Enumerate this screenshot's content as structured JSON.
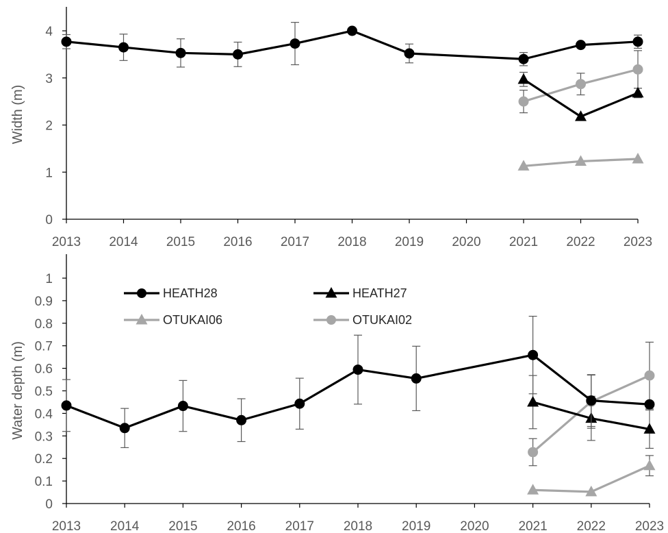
{
  "chart_data": [
    {
      "type": "line",
      "title": "",
      "xlabel": "",
      "ylabel": "Width (m)",
      "ylim": [
        0,
        4
      ],
      "yticks": [
        "0",
        "1",
        "2",
        "3",
        "4"
      ],
      "xlim": [
        2013,
        2023
      ],
      "xticks": [
        "2013",
        "2014",
        "2015",
        "2016",
        "2017",
        "2018",
        "2019",
        "2020",
        "2021",
        "2022",
        "2023"
      ],
      "grid": false,
      "series": [
        {
          "name": "HEATH28",
          "color": "#000000",
          "marker": "circle",
          "x": [
            2013,
            2014,
            2015,
            2016,
            2017,
            2018,
            2019,
            2021,
            2022,
            2023
          ],
          "y": [
            3.77,
            3.65,
            3.53,
            3.5,
            3.73,
            4.0,
            3.52,
            3.4,
            3.7,
            3.77
          ],
          "err": [
            0.15,
            0.28,
            0.3,
            0.26,
            0.45,
            0.0,
            0.2,
            0.14,
            0.0,
            0.14
          ]
        },
        {
          "name": "HEATH27",
          "color": "#000000",
          "marker": "triangle",
          "x": [
            2021,
            2022,
            2023
          ],
          "y": [
            2.97,
            2.18,
            2.68
          ],
          "err": [
            0.15,
            0.0,
            0.1
          ]
        },
        {
          "name": "OTUKAI06",
          "color": "#a6a6a6",
          "marker": "triangle",
          "x": [
            2021,
            2022,
            2023
          ],
          "y": [
            1.13,
            1.23,
            1.28
          ],
          "err": [
            0.0,
            0.0,
            0.0
          ]
        },
        {
          "name": "OTUKAI02",
          "color": "#a6a6a6",
          "marker": "circle",
          "x": [
            2021,
            2022,
            2023
          ],
          "y": [
            2.5,
            2.87,
            3.18
          ],
          "err": [
            0.24,
            0.23,
            0.4
          ]
        }
      ]
    },
    {
      "type": "line",
      "title": "",
      "xlabel": "",
      "ylabel": "Water depth (m)",
      "ylim": [
        0,
        1
      ],
      "yticks": [
        "0",
        "0.1",
        "0.2",
        "0.3",
        "0.4",
        "0.5",
        "0.6",
        "0.7",
        "0.8",
        "0.9",
        "1"
      ],
      "xlim": [
        2013,
        2023
      ],
      "xticks": [
        "2013",
        "2014",
        "2015",
        "2016",
        "2017",
        "2018",
        "2019",
        "2020",
        "2021",
        "2022",
        "2023"
      ],
      "grid": false,
      "legend": "top-left",
      "series": [
        {
          "name": "HEATH28",
          "color": "#000000",
          "marker": "circle",
          "x": [
            2013,
            2014,
            2015,
            2016,
            2017,
            2018,
            2019,
            2021,
            2022,
            2023
          ],
          "y": [
            0.435,
            0.335,
            0.433,
            0.37,
            0.443,
            0.594,
            0.555,
            0.659,
            0.457,
            0.44
          ],
          "err": [
            0.115,
            0.087,
            0.113,
            0.095,
            0.113,
            0.153,
            0.143,
            0.172,
            0.115,
            0.0
          ]
        },
        {
          "name": "HEATH27",
          "color": "#000000",
          "marker": "triangle",
          "x": [
            2021,
            2022,
            2023
          ],
          "y": [
            0.45,
            0.378,
            0.33
          ],
          "err": [
            0.118,
            0.098,
            0.085
          ]
        },
        {
          "name": "OTUKAI06",
          "color": "#a6a6a6",
          "marker": "triangle",
          "x": [
            2021,
            2022,
            2023
          ],
          "y": [
            0.06,
            0.052,
            0.168
          ],
          "err": [
            0.0,
            0.0,
            0.045
          ]
        },
        {
          "name": "OTUKAI02",
          "color": "#a6a6a6",
          "marker": "circle",
          "x": [
            2021,
            2022,
            2023
          ],
          "y": [
            0.228,
            0.452,
            0.568
          ],
          "err": [
            0.06,
            0.118,
            0.148
          ]
        }
      ]
    }
  ]
}
